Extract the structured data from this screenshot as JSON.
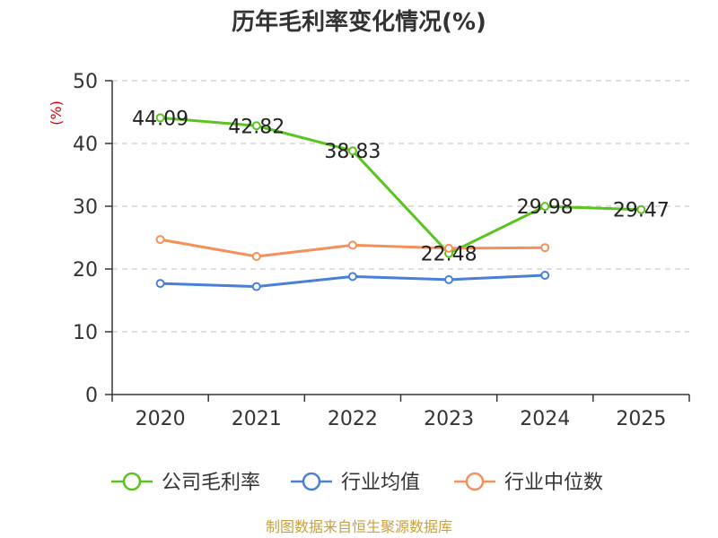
{
  "chart_data": {
    "type": "line",
    "title": "历年毛利率变化情况(%)",
    "unit": "(%)",
    "source": "制图数据来自恒生聚源数据库",
    "categories": [
      "2020",
      "2021",
      "2022",
      "2023",
      "2024",
      "2025"
    ],
    "ylim": [
      0,
      50
    ],
    "yticks": [
      "0",
      "10",
      "20",
      "30",
      "40",
      "50"
    ],
    "grid": true,
    "legend_position": "bottom",
    "series": [
      {
        "name": "公司毛利率",
        "color": "#5ac41e",
        "values": [
          44.09,
          42.82,
          38.83,
          22.48,
          29.98,
          29.47
        ],
        "labels": [
          "44.09",
          "42.82",
          "38.83",
          "22.48",
          "29.98",
          "29.47"
        ]
      },
      {
        "name": "行业均值",
        "color": "#4a7fd8",
        "values": [
          17.7,
          17.2,
          18.8,
          18.3,
          19.0,
          null
        ]
      },
      {
        "name": "行业中位数",
        "color": "#f4905a",
        "values": [
          24.7,
          22.0,
          23.8,
          23.3,
          23.4,
          null
        ]
      }
    ]
  }
}
